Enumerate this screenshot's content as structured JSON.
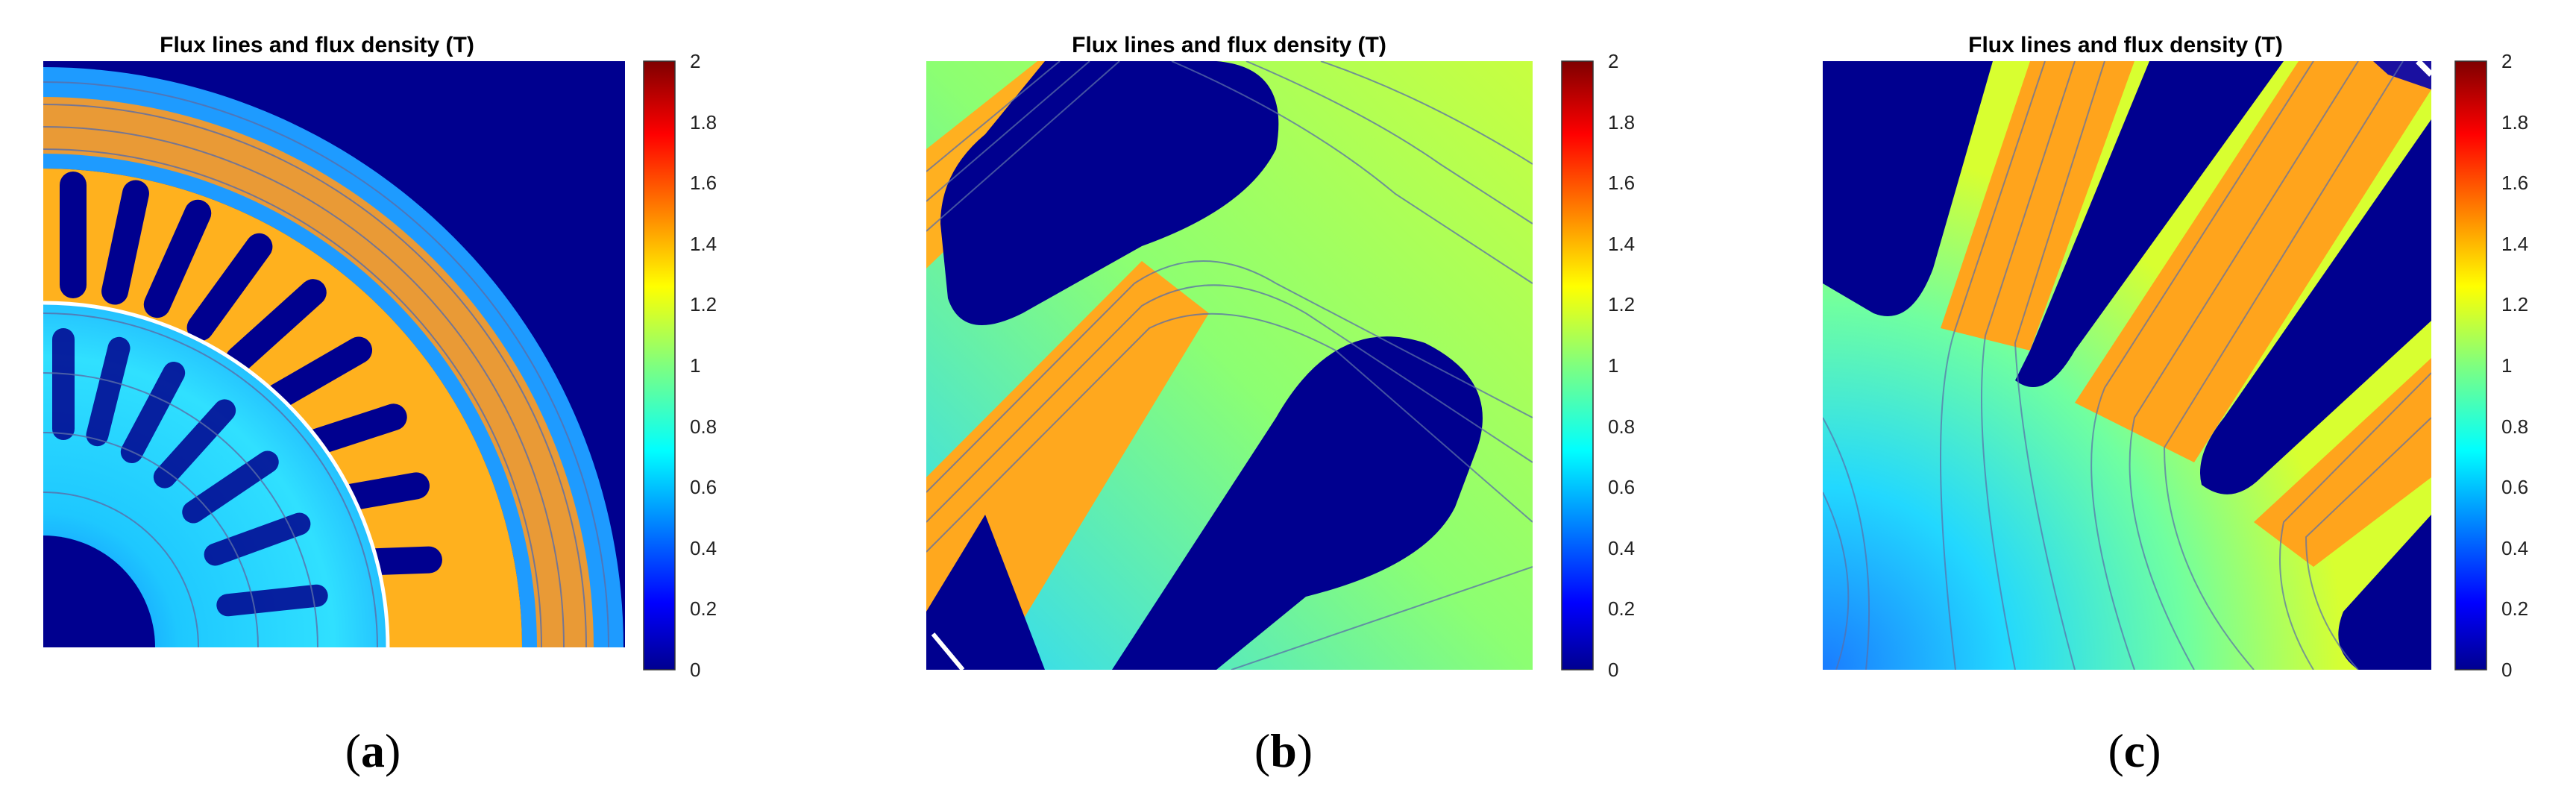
{
  "figure": {
    "panels": [
      {
        "id": "a",
        "title": "Flux lines and flux density (T)",
        "caption_label": "a"
      },
      {
        "id": "b",
        "title": "Flux lines and flux density (T)",
        "caption_label": "b"
      },
      {
        "id": "c",
        "title": "Flux lines and flux density (T)",
        "caption_label": "c"
      }
    ],
    "colorbar": {
      "ticks": [
        "0",
        "0.2",
        "0.4",
        "0.6",
        "0.8",
        "1",
        "1.2",
        "1.4",
        "1.6",
        "1.8",
        "2"
      ],
      "range": [
        0,
        2
      ],
      "colormap": "jet"
    },
    "colors": {
      "jet_dark_blue": "#00008f",
      "jet_blue": "#0000ff",
      "jet_cyan": "#00ffff",
      "jet_green": "#7fff7f",
      "jet_yellow": "#ffff00",
      "jet_orange": "#ff7f00",
      "jet_red": "#ff0000",
      "jet_dark_red": "#7f0000"
    }
  },
  "chart_data": [
    {
      "type": "heatmap",
      "title": "Flux lines and flux density (T)",
      "colorbar_label": "",
      "colorbar_range": [
        0,
        2
      ],
      "colorbar_ticks": [
        0,
        0.2,
        0.4,
        0.6,
        0.8,
        1,
        1.2,
        1.4,
        1.6,
        1.8,
        2
      ]
    },
    {
      "type": "heatmap",
      "title": "Flux lines and flux density (T)",
      "colorbar_label": "",
      "colorbar_range": [
        0,
        2
      ],
      "colorbar_ticks": [
        0,
        0.2,
        0.4,
        0.6,
        0.8,
        1,
        1.2,
        1.4,
        1.6,
        1.8,
        2
      ]
    },
    {
      "type": "heatmap",
      "title": "Flux lines and flux density (T)",
      "colorbar_label": "",
      "colorbar_range": [
        0,
        2
      ],
      "colorbar_ticks": [
        0,
        0.2,
        0.4,
        0.6,
        0.8,
        1,
        1.2,
        1.4,
        1.6,
        1.8,
        2
      ]
    }
  ]
}
